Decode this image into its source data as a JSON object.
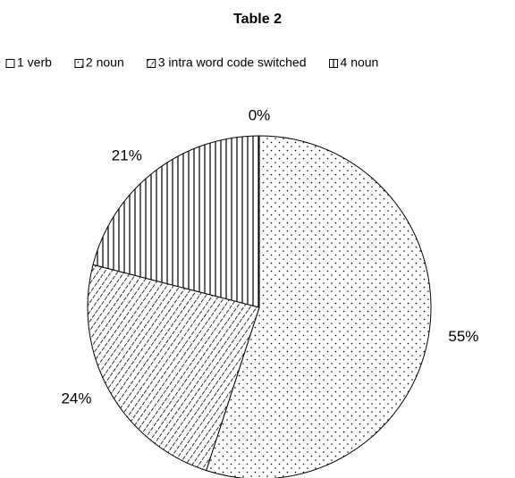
{
  "chart_data": {
    "type": "pie",
    "title": "Table 2",
    "categories": [
      "1 verb",
      "2 noun",
      "3 intra word code switched",
      "4 noun"
    ],
    "values": [
      0,
      55,
      24,
      21
    ],
    "value_labels": [
      "0%",
      "55%",
      "24%",
      "21%"
    ],
    "legend": "top"
  }
}
